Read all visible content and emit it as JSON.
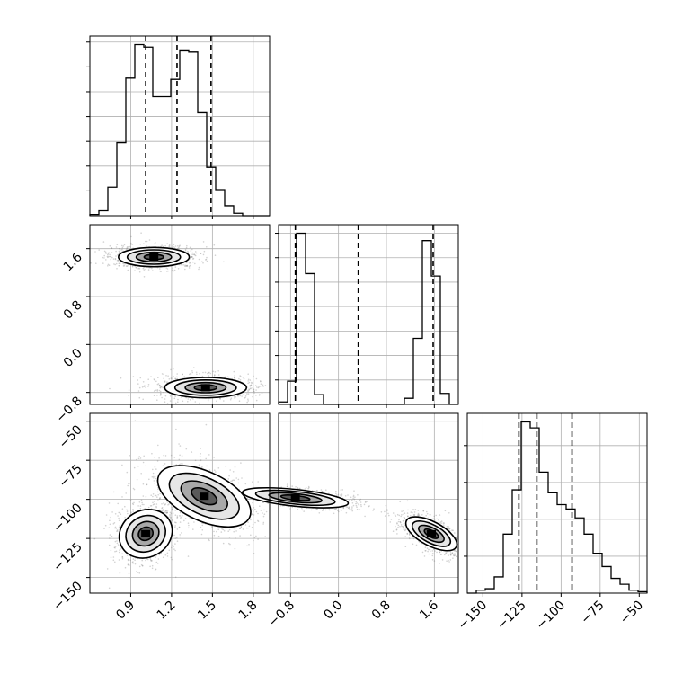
{
  "chart_data": {
    "type": "corner",
    "grid": true,
    "colors": {
      "line": "#000000",
      "grid": "#b0b0b0",
      "scatter": "#7f7f7f",
      "background": "#ffffff"
    },
    "parameters": [
      {
        "range": [
          0.6,
          1.92
        ],
        "ticks": [
          0.9,
          1.2,
          1.5,
          1.8
        ],
        "tick_labels": [
          "0.9",
          "1.2",
          "1.5",
          "1.8"
        ],
        "quantiles": [
          1.01,
          1.24,
          1.49
        ],
        "histogram": {
          "edges_start": 0.6,
          "bin_width": 0.066,
          "counts": [
            1,
            4,
            23,
            59,
            111,
            138,
            136,
            96,
            96,
            110,
            133,
            132,
            83,
            39,
            21,
            8,
            2,
            0,
            0,
            0
          ]
        }
      },
      {
        "range": [
          -1.0,
          2.0
        ],
        "ticks": [
          -0.8,
          0.0,
          0.8,
          1.6
        ],
        "tick_labels": [
          "−0.8",
          "0.0",
          "0.8",
          "1.6"
        ],
        "quantiles": [
          -0.72,
          0.33,
          1.58
        ],
        "histogram": {
          "edges_start": -1.0,
          "bin_width": 0.15,
          "counts": [
            2,
            19,
            140,
            107,
            8,
            0,
            0,
            0,
            0,
            0,
            0,
            0,
            0,
            0,
            5,
            54,
            134,
            105,
            9,
            0
          ]
        }
      },
      {
        "range": [
          -160,
          -45
        ],
        "ticks": [
          -150,
          -125,
          -100,
          -75,
          -50
        ],
        "tick_labels": [
          "−150",
          "−125",
          "−100",
          "−75",
          "−50"
        ],
        "quantiles": [
          -127,
          -115.5,
          -93
        ],
        "histogram": {
          "edges_start": -160,
          "bin_width": 5.75,
          "counts": [
            0,
            2,
            3,
            11,
            40,
            70,
            116,
            112,
            82,
            68,
            60,
            57,
            51,
            40,
            27,
            18,
            10,
            6,
            2,
            1
          ]
        }
      }
    ],
    "joint": [
      {
        "x_param": 0,
        "y_param": 1,
        "clusters": [
          {
            "center": [
              1.07,
              1.46
            ],
            "widths": [
              0.13,
              0.08
            ],
            "angle": 0
          },
          {
            "center": [
              1.45,
              -0.72
            ],
            "widths": [
              0.15,
              0.085
            ],
            "angle": 0
          }
        ]
      },
      {
        "x_param": 0,
        "y_param": 2,
        "clusters": [
          {
            "center": [
              1.01,
              -122
            ],
            "widths": [
              0.1,
              7.5
            ],
            "angle": -28
          },
          {
            "center": [
              1.44,
              -98
            ],
            "widths": [
              0.09,
              16
            ],
            "angle": -65
          }
        ]
      },
      {
        "x_param": 1,
        "y_param": 2,
        "clusters": [
          {
            "center": [
              -0.72,
              -99
            ],
            "widths": [
              0.07,
              17
            ],
            "angle": -84
          },
          {
            "center": [
              1.55,
              -122
            ],
            "widths": [
              0.1,
              9
            ],
            "angle": -62
          }
        ]
      }
    ]
  }
}
